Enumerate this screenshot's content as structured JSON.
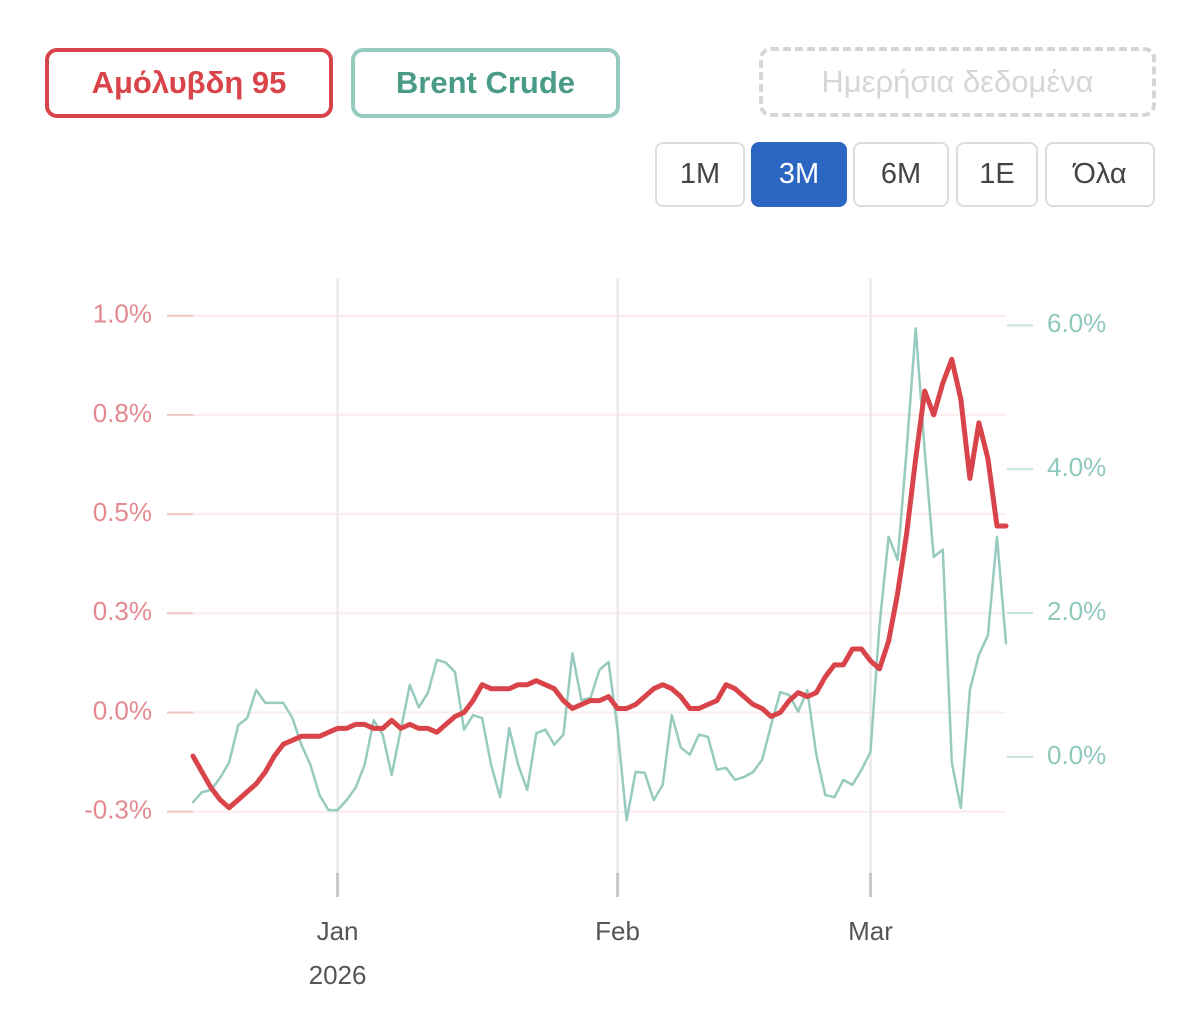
{
  "chart_data": {
    "type": "line",
    "categories": [
      null,
      null,
      null,
      null,
      null,
      null,
      null,
      null,
      null,
      null,
      null,
      null,
      null,
      null,
      null,
      null,
      "Jan",
      null,
      null,
      null,
      null,
      null,
      null,
      null,
      null,
      null,
      null,
      null,
      null,
      null,
      null,
      null,
      null,
      null,
      null,
      null,
      null,
      null,
      null,
      null,
      null,
      null,
      null,
      null,
      null,
      null,
      null,
      "Feb",
      null,
      null,
      null,
      null,
      null,
      null,
      null,
      null,
      null,
      null,
      null,
      null,
      null,
      null,
      null,
      null,
      null,
      null,
      null,
      null,
      null,
      null,
      null,
      null,
      null,
      null,
      null,
      "Mar",
      null,
      null,
      null,
      null,
      null,
      null,
      null,
      null,
      null,
      null,
      null,
      null,
      null,
      null,
      null
    ],
    "x_year": "2026",
    "series": [
      {
        "name": "Αμόλυβδη 95",
        "color": "#d9444a",
        "axis": "y",
        "values": [
          -0.11,
          -0.15,
          -0.19,
          -0.22,
          -0.24,
          -0.22,
          -0.2,
          -0.18,
          -0.15,
          -0.11,
          -0.08,
          -0.07,
          -0.06,
          -0.06,
          -0.06,
          -0.05,
          -0.04,
          -0.04,
          -0.03,
          -0.03,
          -0.04,
          -0.04,
          -0.02,
          -0.04,
          -0.03,
          -0.04,
          -0.04,
          -0.05,
          -0.03,
          -0.01,
          0.0,
          0.03,
          0.07,
          0.06,
          0.06,
          0.06,
          0.07,
          0.07,
          0.08,
          0.07,
          0.06,
          0.03,
          0.01,
          0.02,
          0.03,
          0.03,
          0.04,
          0.01,
          0.01,
          0.02,
          0.04,
          0.06,
          0.07,
          0.06,
          0.04,
          0.01,
          0.01,
          0.02,
          0.03,
          0.07,
          0.06,
          0.04,
          0.02,
          0.01,
          -0.01,
          0.0,
          0.03,
          0.05,
          0.04,
          0.05,
          0.09,
          0.12,
          0.12,
          0.16,
          0.16,
          0.13,
          0.11,
          0.18,
          0.3,
          0.45,
          0.64,
          0.81,
          0.75,
          0.83,
          0.89,
          0.79,
          0.59,
          0.73,
          0.64,
          0.47,
          0.47
        ]
      },
      {
        "name": "Brent Crude",
        "color": "#97cbbf",
        "axis": "y2",
        "values": [
          -0.63,
          -0.49,
          -0.46,
          -0.29,
          -0.08,
          0.44,
          0.54,
          0.93,
          0.75,
          0.75,
          0.75,
          0.54,
          0.17,
          -0.11,
          -0.53,
          -0.74,
          -0.74,
          -0.6,
          -0.43,
          -0.11,
          0.51,
          0.31,
          -0.25,
          0.38,
          1.0,
          0.69,
          0.89,
          1.35,
          1.31,
          1.18,
          0.38,
          0.58,
          0.54,
          -0.11,
          -0.56,
          0.4,
          -0.11,
          -0.46,
          0.33,
          0.38,
          0.17,
          0.31,
          1.44,
          0.79,
          0.82,
          1.21,
          1.32,
          0.38,
          -0.88,
          -0.21,
          -0.22,
          -0.6,
          -0.39,
          0.58,
          0.13,
          0.03,
          0.31,
          0.28,
          -0.18,
          -0.15,
          -0.32,
          -0.28,
          -0.21,
          -0.04,
          0.44,
          0.9,
          0.86,
          0.63,
          0.93,
          0.03,
          -0.53,
          -0.56,
          -0.32,
          -0.39,
          -0.18,
          0.07,
          1.83,
          3.06,
          2.74,
          4.26,
          5.96,
          4.26,
          2.78,
          2.88,
          -0.08,
          -0.71,
          0.93,
          1.42,
          1.69,
          3.06,
          1.58
        ]
      }
    ],
    "ylim": [
      -0.46,
      1.09
    ],
    "yticks": [
      {
        "value": 1.0,
        "label": "1.0%"
      },
      {
        "value": 0.75,
        "label": "0.8%"
      },
      {
        "value": 0.5,
        "label": "0.5%"
      },
      {
        "value": 0.25,
        "label": "0.3%"
      },
      {
        "value": 0,
        "label": "0.0%"
      },
      {
        "value": -0.25,
        "label": "-0.3%"
      }
    ],
    "y2lim": [
      -1.92,
      6.63
    ],
    "y2ticks": [
      {
        "value": 6,
        "label": "6.0%"
      },
      {
        "value": 4,
        "label": "4.0%"
      },
      {
        "value": 2,
        "label": "2.0%"
      },
      {
        "value": 0,
        "label": "0.0%"
      }
    ],
    "grid": true
  },
  "controls": {
    "daily_toggle": "Ημερήσια δεδομένα",
    "ranges": [
      "1M",
      "3M",
      "6M",
      "1E",
      "Όλα"
    ],
    "active_range": 1
  }
}
